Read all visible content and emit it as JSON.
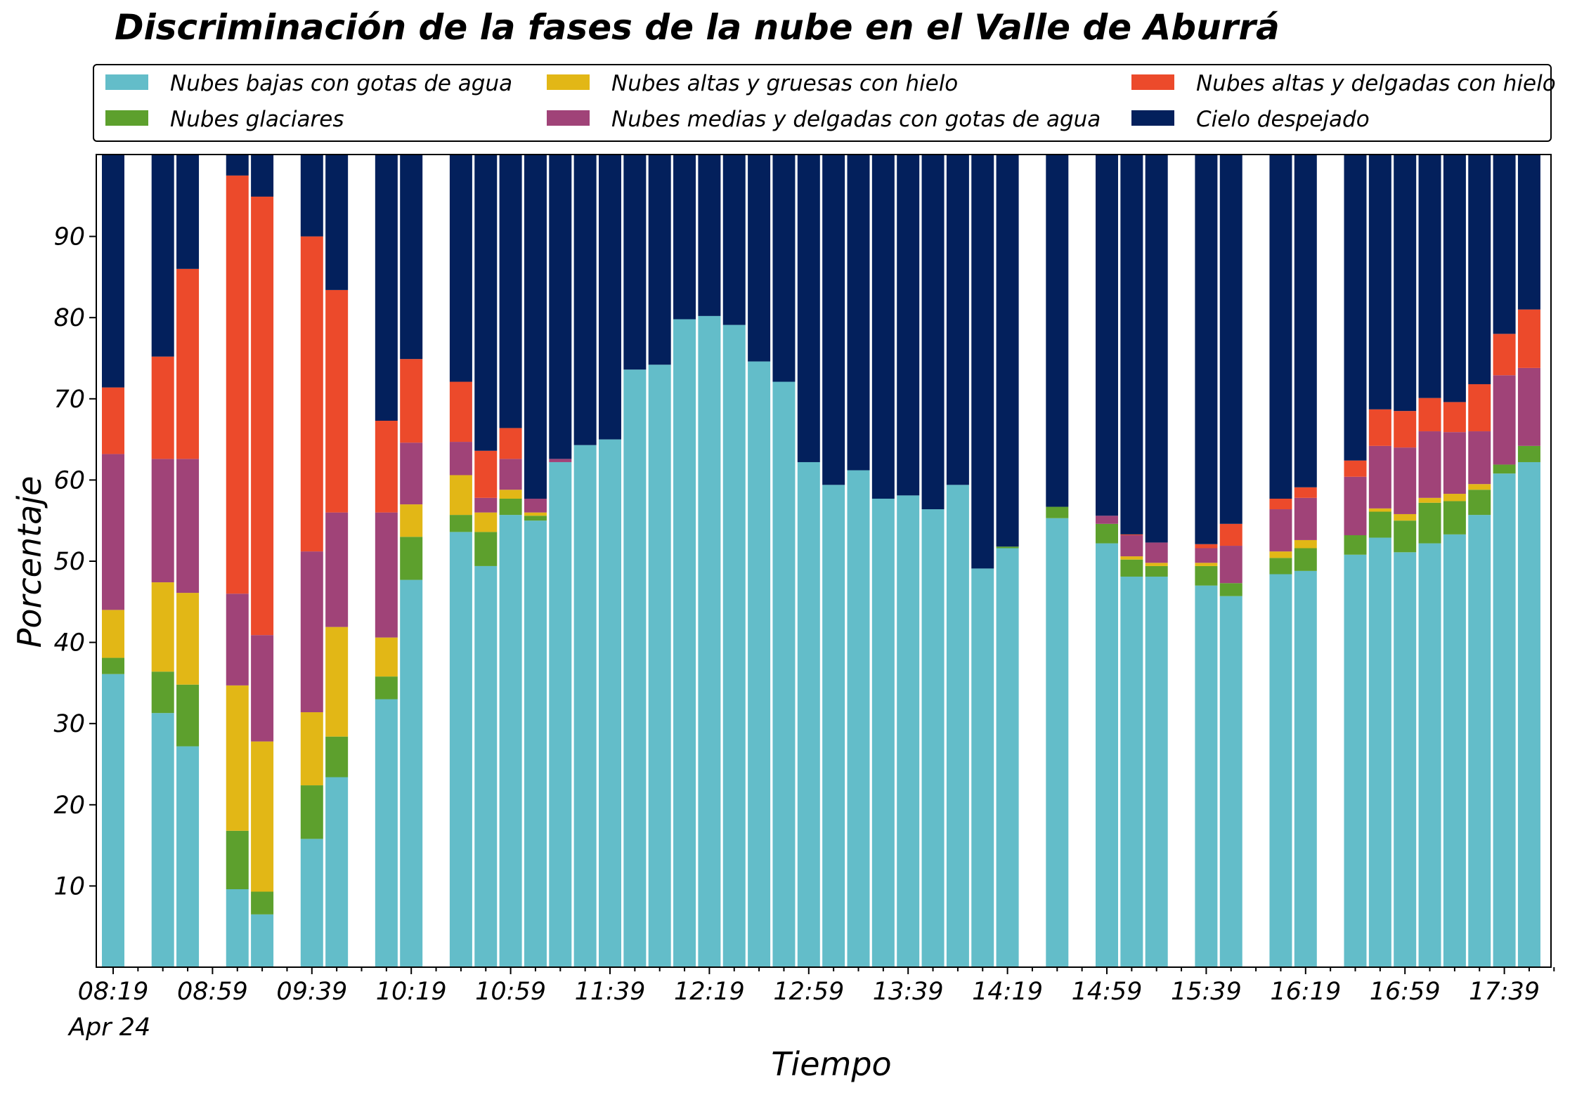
{
  "chart_data": {
    "type": "bar",
    "stacked": true,
    "title": "Discriminación de la fases de la nube en el Valle de Aburrá",
    "xlabel": "Tiempo",
    "ylabel": "Porcentaje",
    "ylim": [
      0,
      100
    ],
    "yticks": [
      10,
      20,
      30,
      40,
      50,
      60,
      70,
      80,
      90
    ],
    "x_tick_labels": [
      "08:19",
      "08:59",
      "09:39",
      "10:19",
      "10:59",
      "11:39",
      "12:19",
      "12:59",
      "13:39",
      "14:19",
      "14:59",
      "15:39",
      "16:19",
      "16:59",
      "17:39"
    ],
    "x_date_label": "Apr 24",
    "x": [
      "08:19",
      "08:29",
      "08:39",
      "08:49",
      "08:59",
      "09:09",
      "09:19",
      "09:29",
      "09:39",
      "09:49",
      "09:59",
      "10:09",
      "10:19",
      "10:29",
      "10:39",
      "10:49",
      "10:59",
      "11:09",
      "11:19",
      "11:29",
      "11:39",
      "11:49",
      "11:59",
      "12:09",
      "12:19",
      "12:29",
      "12:39",
      "12:49",
      "12:59",
      "13:09",
      "13:19",
      "13:29",
      "13:39",
      "13:49",
      "13:59",
      "14:09",
      "14:19",
      "14:29",
      "14:39",
      "14:49",
      "14:59",
      "15:09",
      "15:19",
      "15:29",
      "15:39",
      "15:49",
      "15:59",
      "16:09",
      "16:19",
      "16:29",
      "16:39",
      "16:49",
      "16:59",
      "17:09",
      "17:19",
      "17:29",
      "17:39",
      "17:49",
      "17:59"
    ],
    "legend_position": "top",
    "legend_columns": 3,
    "series": [
      {
        "name": "Nubes bajas con gotas de agua",
        "color": "#63BDC9",
        "values": [
          36.1,
          null,
          31.3,
          27.2,
          null,
          9.6,
          6.5,
          null,
          15.8,
          23.4,
          null,
          33.0,
          47.7,
          null,
          53.6,
          49.4,
          55.7,
          55.0,
          62.2,
          64.3,
          65.0,
          73.6,
          74.2,
          79.8,
          80.2,
          79.1,
          74.6,
          72.1,
          62.2,
          59.4,
          61.2,
          57.7,
          58.1,
          56.4,
          59.4,
          49.1,
          51.6,
          null,
          55.3,
          null,
          52.2,
          48.1,
          48.1,
          null,
          47.0,
          45.7,
          null,
          48.4,
          48.8,
          null,
          50.8,
          52.9,
          51.1,
          52.2,
          53.3,
          55.7,
          60.8,
          62.2,
          null
        ]
      },
      {
        "name": "Nubes glaciares",
        "color": "#5DA02D",
        "values": [
          2.0,
          null,
          5.1,
          7.6,
          null,
          7.2,
          2.8,
          null,
          6.6,
          5.0,
          null,
          2.8,
          5.3,
          null,
          2.1,
          4.2,
          2.0,
          0.6,
          0,
          0,
          0,
          0,
          0,
          0,
          0,
          0,
          0,
          0,
          0,
          0,
          0,
          0,
          0,
          0,
          0,
          0,
          0.2,
          null,
          1.4,
          null,
          2.4,
          2.1,
          1.3,
          null,
          2.4,
          1.6,
          null,
          2.0,
          2.8,
          null,
          2.4,
          3.2,
          3.9,
          5.0,
          4.1,
          3.1,
          1.1,
          2.0,
          null
        ]
      },
      {
        "name": "Nubes altas y gruesas con hielo",
        "color": "#E2B716",
        "values": [
          5.9,
          null,
          11.0,
          11.3,
          null,
          17.9,
          18.5,
          null,
          9.0,
          13.5,
          null,
          4.8,
          4.0,
          null,
          4.9,
          2.4,
          1.1,
          0.4,
          0,
          0,
          0,
          0,
          0,
          0,
          0,
          0,
          0,
          0,
          0,
          0,
          0,
          0,
          0,
          0,
          0,
          0,
          0,
          null,
          0,
          null,
          0,
          0.4,
          0.4,
          null,
          0.4,
          0,
          null,
          0.8,
          1.0,
          null,
          0,
          0.4,
          0.8,
          0.6,
          0.9,
          0.7,
          0,
          0,
          null
        ]
      },
      {
        "name": "Nubes medias y delgadas con gotas de agua",
        "color": "#A04378",
        "values": [
          19.2,
          null,
          15.2,
          16.5,
          null,
          11.3,
          13.1,
          null,
          19.8,
          14.1,
          null,
          15.4,
          7.6,
          null,
          4.1,
          1.8,
          3.8,
          1.7,
          0.4,
          0,
          0,
          0,
          0,
          0,
          0,
          0,
          0,
          0,
          0,
          0,
          0,
          0,
          0,
          0,
          0,
          0,
          0,
          null,
          0,
          null,
          1.0,
          2.6,
          2.5,
          null,
          1.8,
          4.6,
          null,
          5.2,
          5.2,
          null,
          7.2,
          7.7,
          8.2,
          8.2,
          7.6,
          6.5,
          11.0,
          9.6,
          null
        ]
      },
      {
        "name": "Nubes altas y delgadas con hielo",
        "color": "#EC4A2B",
        "values": [
          8.2,
          null,
          12.6,
          23.4,
          null,
          51.5,
          54.0,
          null,
          38.8,
          27.4,
          null,
          11.3,
          10.3,
          null,
          7.4,
          5.8,
          3.8,
          0,
          0,
          0,
          0,
          0,
          0,
          0,
          0,
          0,
          0,
          0,
          0,
          0,
          0,
          0,
          0,
          0,
          0,
          0,
          0,
          null,
          0,
          null,
          0,
          0.1,
          0,
          null,
          0.5,
          2.7,
          null,
          1.3,
          1.3,
          null,
          2.0,
          4.5,
          4.5,
          4.1,
          3.7,
          5.8,
          5.1,
          7.2,
          null
        ]
      },
      {
        "name": "Cielo despejado",
        "color": "#03205C",
        "values": [
          28.6,
          null,
          24.8,
          14.0,
          null,
          2.5,
          5.1,
          null,
          10.0,
          16.6,
          null,
          32.7,
          25.1,
          null,
          27.9,
          36.4,
          33.6,
          42.3,
          37.4,
          35.7,
          35.0,
          26.4,
          25.8,
          20.2,
          19.8,
          20.9,
          25.4,
          27.9,
          37.8,
          40.6,
          38.8,
          42.3,
          41.9,
          43.6,
          40.6,
          50.9,
          48.2,
          null,
          43.3,
          null,
          44.4,
          46.7,
          47.7,
          null,
          47.9,
          45.4,
          null,
          42.3,
          40.9,
          null,
          37.6,
          31.3,
          31.5,
          29.9,
          30.4,
          28.2,
          22.0,
          19.0,
          null
        ]
      }
    ]
  }
}
